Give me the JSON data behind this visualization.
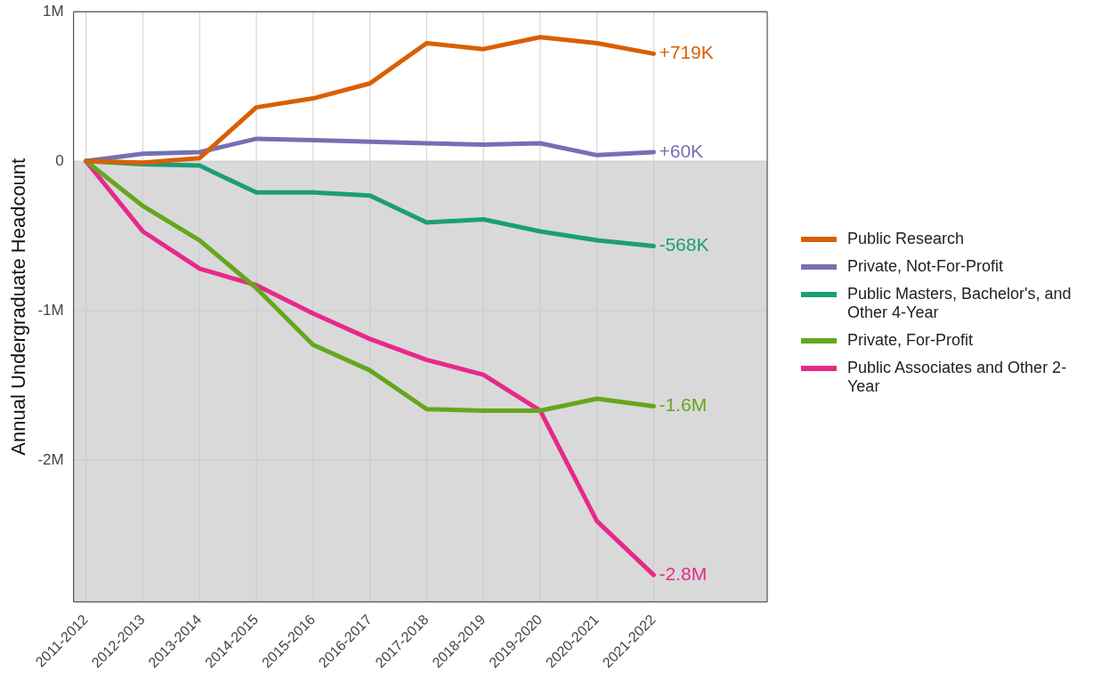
{
  "chart_data": {
    "type": "line",
    "ylabel": "Annual Undergraduate Headcount",
    "categories": [
      "2011-2012",
      "2012-2013",
      "2013-2014",
      "2014-2015",
      "2015-2016",
      "2016-2017",
      "2017-2018",
      "2018-2019",
      "2019-2020",
      "2020-2021",
      "2021-2022"
    ],
    "series": [
      {
        "name": "Public Research",
        "color": "#d95f02",
        "values": [
          0,
          -10000,
          20000,
          360000,
          420000,
          520000,
          790000,
          750000,
          830000,
          790000,
          719000
        ],
        "value_labels": [
          null,
          null,
          null,
          null,
          null,
          null,
          null,
          null,
          null,
          null,
          "+719K"
        ]
      },
      {
        "name": "Private, Not-For-Profit",
        "color": "#7570b3",
        "values": [
          0,
          50000,
          60000,
          150000,
          140000,
          130000,
          120000,
          110000,
          120000,
          40000,
          60000
        ],
        "value_labels": [
          null,
          null,
          null,
          null,
          null,
          null,
          null,
          null,
          null,
          null,
          "+60K"
        ]
      },
      {
        "name": "Public Masters, Bachelor's, and Other 4-Year",
        "color": "#1b9e77",
        "values": [
          0,
          -20000,
          -30000,
          -210000,
          -210000,
          -230000,
          -410000,
          -390000,
          -470000,
          -530000,
          -568000
        ],
        "value_labels": [
          null,
          null,
          null,
          null,
          null,
          null,
          null,
          null,
          null,
          null,
          "-568K"
        ]
      },
      {
        "name": "Private, For-Profit",
        "color": "#66a61e",
        "values": [
          0,
          -300000,
          -530000,
          -850000,
          -1230000,
          -1400000,
          -1660000,
          -1670000,
          -1670000,
          -1590000,
          -1640000
        ],
        "value_labels": [
          null,
          null,
          null,
          null,
          null,
          null,
          null,
          null,
          null,
          null,
          "-1.6M"
        ]
      },
      {
        "name": "Public Associates and Other 2-Year",
        "color": "#e7298a",
        "values": [
          0,
          -470000,
          -720000,
          -830000,
          -1020000,
          -1190000,
          -1330000,
          -1430000,
          -1670000,
          -2410000,
          -2770000
        ],
        "value_labels": [
          null,
          null,
          null,
          null,
          null,
          null,
          null,
          null,
          null,
          null,
          "-2.8M"
        ]
      }
    ],
    "ylim": [
      -2950000,
      1000000
    ],
    "yticks": [
      {
        "value": -2000000,
        "label": "-2M"
      },
      {
        "value": -1000000,
        "label": "-1M"
      },
      0,
      {
        "value": 1000000,
        "label": "1M"
      }
    ],
    "bands": [
      {
        "axis": "y",
        "from": -2950000,
        "to": 0,
        "color": "#d9d9d9"
      }
    ],
    "grid": true,
    "legend": "right",
    "marker": "none",
    "line_style": "solid"
  }
}
